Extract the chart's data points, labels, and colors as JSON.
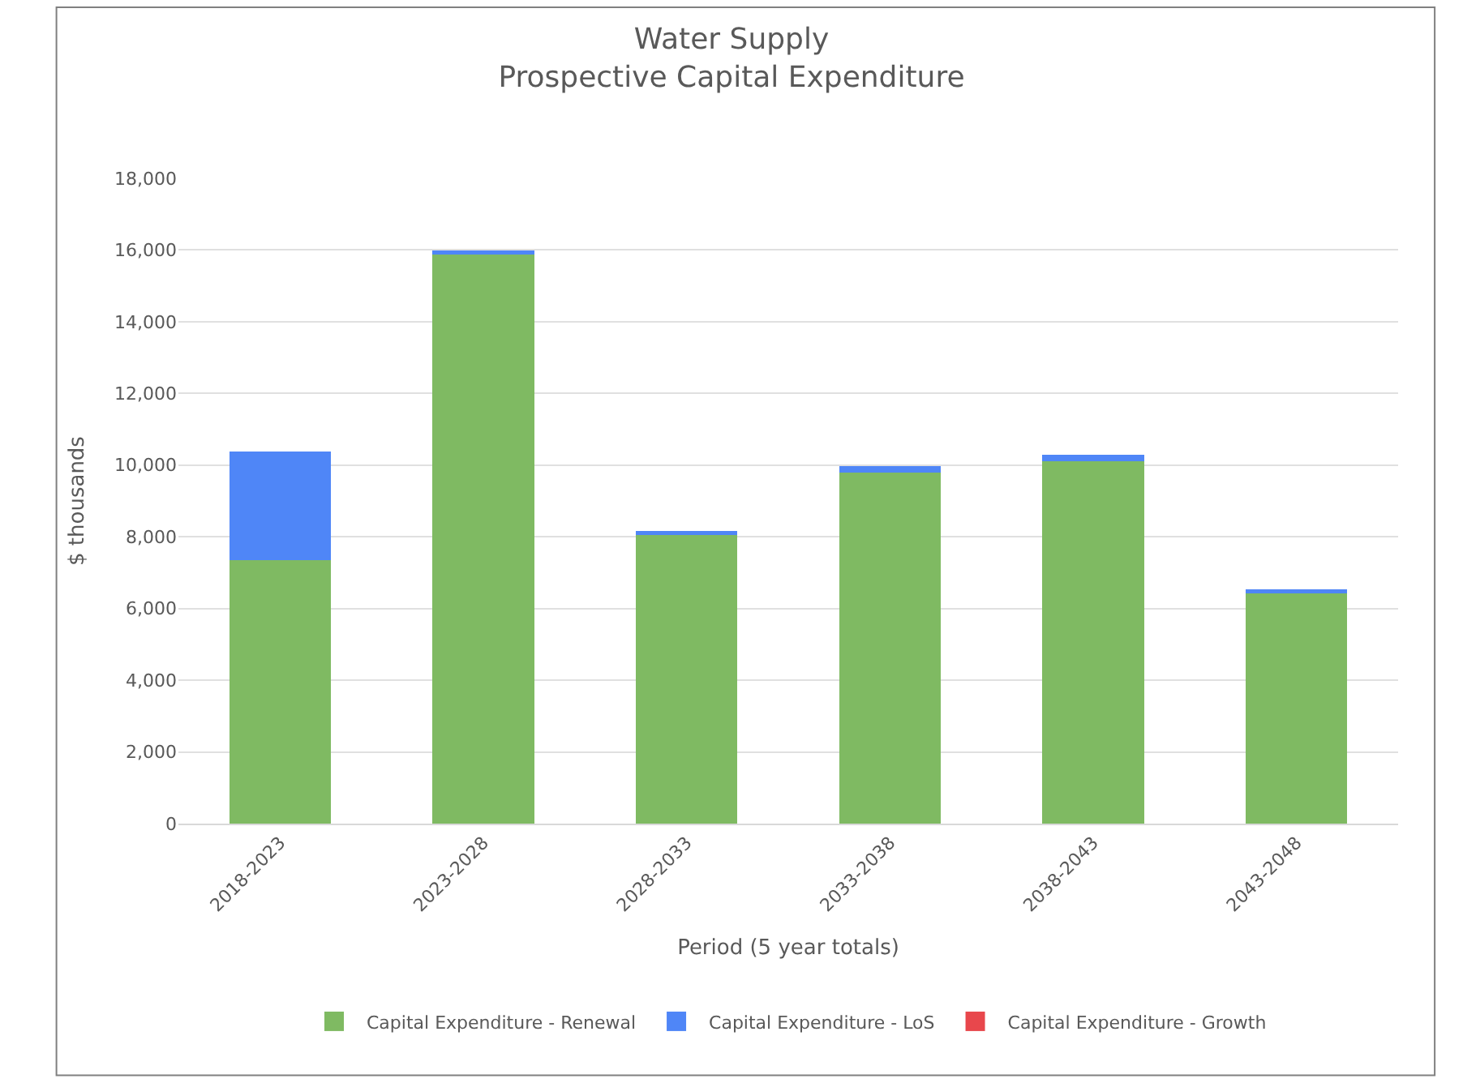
{
  "chart_data": {
    "type": "bar",
    "title": "Water Supply\nProspective Capital Expenditure",
    "xlabel": "Period (5 year totals)",
    "ylabel": "$ thousands",
    "categories": [
      "2018-2023",
      "2023-2028",
      "2028-2033",
      "2033-2038",
      "2038-2043",
      "2043-2048"
    ],
    "series": [
      {
        "name": "Capital Expenditure - Renewal",
        "color": "#7fba62",
        "values": [
          7350,
          15880,
          8060,
          9800,
          10100,
          6440
        ]
      },
      {
        "name": "Capital Expenditure - LoS",
        "color": "#4f86f7",
        "values": [
          3030,
          100,
          110,
          180,
          180,
          90
        ]
      },
      {
        "name": "Capital Expenditure - Growth",
        "color": "#e8474c",
        "values": [
          0,
          0,
          0,
          0,
          0,
          0
        ]
      }
    ],
    "stacked": true,
    "ylim": [
      0,
      18000
    ],
    "yticks": [
      {
        "value": 0,
        "label": "0"
      },
      {
        "value": 2000,
        "label": "2,000"
      },
      {
        "value": 4000,
        "label": "4,000"
      },
      {
        "value": 6000,
        "label": "6,000"
      },
      {
        "value": 8000,
        "label": "8,000"
      },
      {
        "value": 10000,
        "label": "10,000"
      },
      {
        "value": 12000,
        "label": "12,000"
      },
      {
        "value": 14000,
        "label": "14,000"
      },
      {
        "value": 16000,
        "label": "16,000"
      },
      {
        "value": 18000,
        "label": "18,000"
      }
    ],
    "grid": "y",
    "legend": "bottom"
  }
}
